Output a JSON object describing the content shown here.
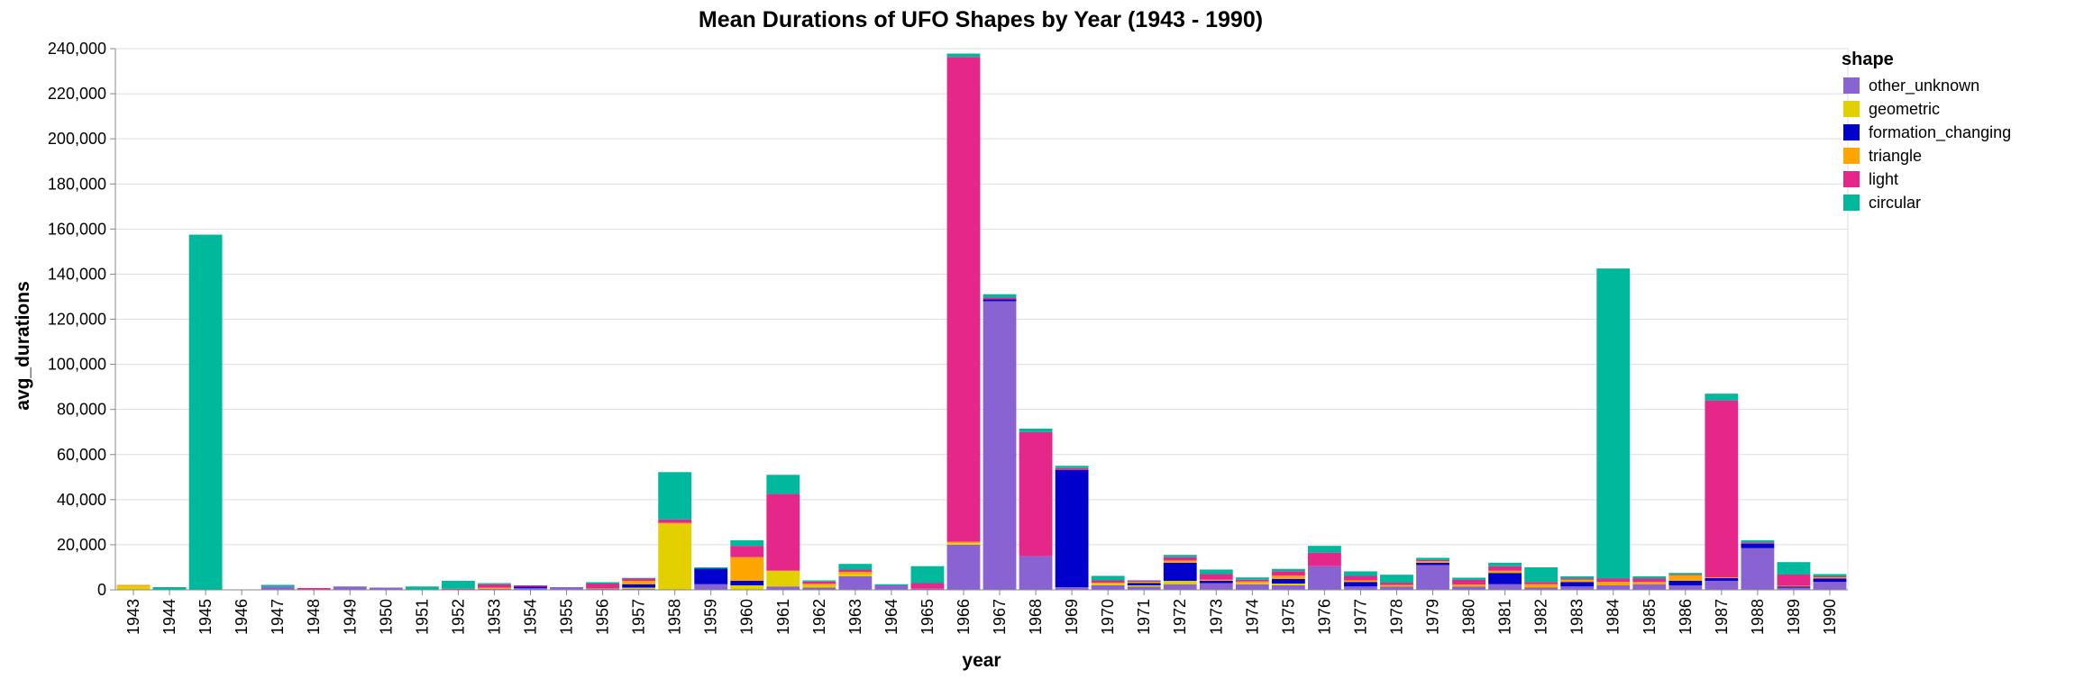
{
  "chart_data": {
    "type": "bar",
    "stacked": true,
    "title": "Mean Durations of UFO Shapes by Year (1943 - 1990)",
    "xlabel": "year",
    "ylabel": "avg_durations",
    "ylim": [
      0,
      240000
    ],
    "yticks": [
      0,
      20000,
      40000,
      60000,
      80000,
      100000,
      120000,
      140000,
      160000,
      180000,
      200000,
      220000,
      240000
    ],
    "ytick_labels": [
      "0",
      "20,000",
      "40,000",
      "60,000",
      "80,000",
      "100,000",
      "120,000",
      "140,000",
      "160,000",
      "180,000",
      "200,000",
      "220,000",
      "240,000"
    ],
    "grid": true,
    "legend": {
      "title": "shape",
      "position": "right"
    },
    "categories": [
      "1943",
      "1944",
      "1945",
      "1946",
      "1947",
      "1948",
      "1949",
      "1950",
      "1951",
      "1952",
      "1953",
      "1954",
      "1955",
      "1956",
      "1957",
      "1958",
      "1959",
      "1960",
      "1961",
      "1962",
      "1963",
      "1964",
      "1965",
      "1966",
      "1967",
      "1968",
      "1969",
      "1970",
      "1971",
      "1972",
      "1973",
      "1974",
      "1975",
      "1976",
      "1977",
      "1978",
      "1979",
      "1980",
      "1981",
      "1982",
      "1983",
      "1984",
      "1985",
      "1986",
      "1987",
      "1988",
      "1989",
      "1990"
    ],
    "series": [
      {
        "name": "other_unknown",
        "color": "#8a63d2",
        "values": [
          0,
          0,
          0,
          0,
          1500,
          0,
          1500,
          1000,
          0,
          0,
          500,
          700,
          1200,
          600,
          500,
          200,
          2500,
          0,
          1500,
          1000,
          6000,
          2000,
          500,
          20000,
          128000,
          15000,
          1200,
          2000,
          1500,
          2500,
          3000,
          2500,
          2000,
          10500,
          1500,
          1500,
          11000,
          1500,
          2500,
          1000,
          1500,
          2000,
          2500,
          2000,
          4000,
          18500,
          1000,
          3500
        ]
      },
      {
        "name": "geometric",
        "color": "#e3d000",
        "values": [
          1500,
          0,
          0,
          0,
          0,
          0,
          0,
          0,
          0,
          0,
          0,
          0,
          0,
          0,
          500,
          29000,
          0,
          2000,
          7000,
          1000,
          1000,
          0,
          0,
          700,
          0,
          0,
          0,
          700,
          500,
          1500,
          0,
          500,
          800,
          0,
          0,
          0,
          0,
          0,
          0,
          0,
          0,
          0,
          0,
          0,
          0,
          0,
          0,
          0
        ]
      },
      {
        "name": "formation_changing",
        "color": "#0000cc",
        "values": [
          0,
          0,
          0,
          0,
          0,
          0,
          0,
          0,
          0,
          0,
          0,
          800,
          0,
          0,
          1500,
          0,
          7000,
          2000,
          0,
          0,
          0,
          0,
          0,
          0,
          800,
          0,
          52000,
          0,
          1000,
          8000,
          1000,
          0,
          2000,
          0,
          2000,
          0,
          1000,
          0,
          5000,
          0,
          2000,
          0,
          0,
          2000,
          1200,
          2000,
          500,
          1500
        ]
      },
      {
        "name": "triangle",
        "color": "#ffa500",
        "values": [
          700,
          0,
          0,
          0,
          0,
          0,
          0,
          0,
          0,
          0,
          500,
          0,
          0,
          200,
          1500,
          500,
          0,
          10500,
          0,
          700,
          1000,
          0,
          0,
          600,
          0,
          0,
          0,
          500,
          600,
          1000,
          500,
          700,
          1500,
          0,
          700,
          700,
          700,
          900,
          1000,
          1500,
          1000,
          1500,
          1000,
          2500,
          300,
          0,
          300,
          500
        ]
      },
      {
        "name": "light",
        "color": "#e6278a",
        "values": [
          0,
          0,
          0,
          0,
          0,
          800,
          0,
          0,
          0,
          500,
          1500,
          500,
          0,
          2000,
          1000,
          1500,
          0,
          5000,
          34000,
          1000,
          1000,
          0,
          2500,
          215000,
          800,
          55000,
          800,
          1000,
          500,
          1500,
          2500,
          800,
          2000,
          6000,
          2000,
          1000,
          500,
          2000,
          2000,
          1000,
          500,
          1500,
          1500,
          300,
          78500,
          500,
          5000,
          500
        ]
      },
      {
        "name": "circular",
        "color": "#00b89c",
        "values": [
          0,
          1200,
          157500,
          0,
          700,
          0,
          0,
          0,
          1500,
          3500,
          500,
          0,
          0,
          600,
          300,
          21000,
          500,
          2500,
          8500,
          500,
          2500,
          500,
          7500,
          1500,
          1500,
          1500,
          1000,
          2000,
          200,
          1000,
          2000,
          1000,
          1000,
          3000,
          2000,
          3500,
          1000,
          1000,
          1500,
          6500,
          1000,
          137500,
          1000,
          700,
          3000,
          1000,
          5500,
          1000
        ]
      }
    ]
  }
}
